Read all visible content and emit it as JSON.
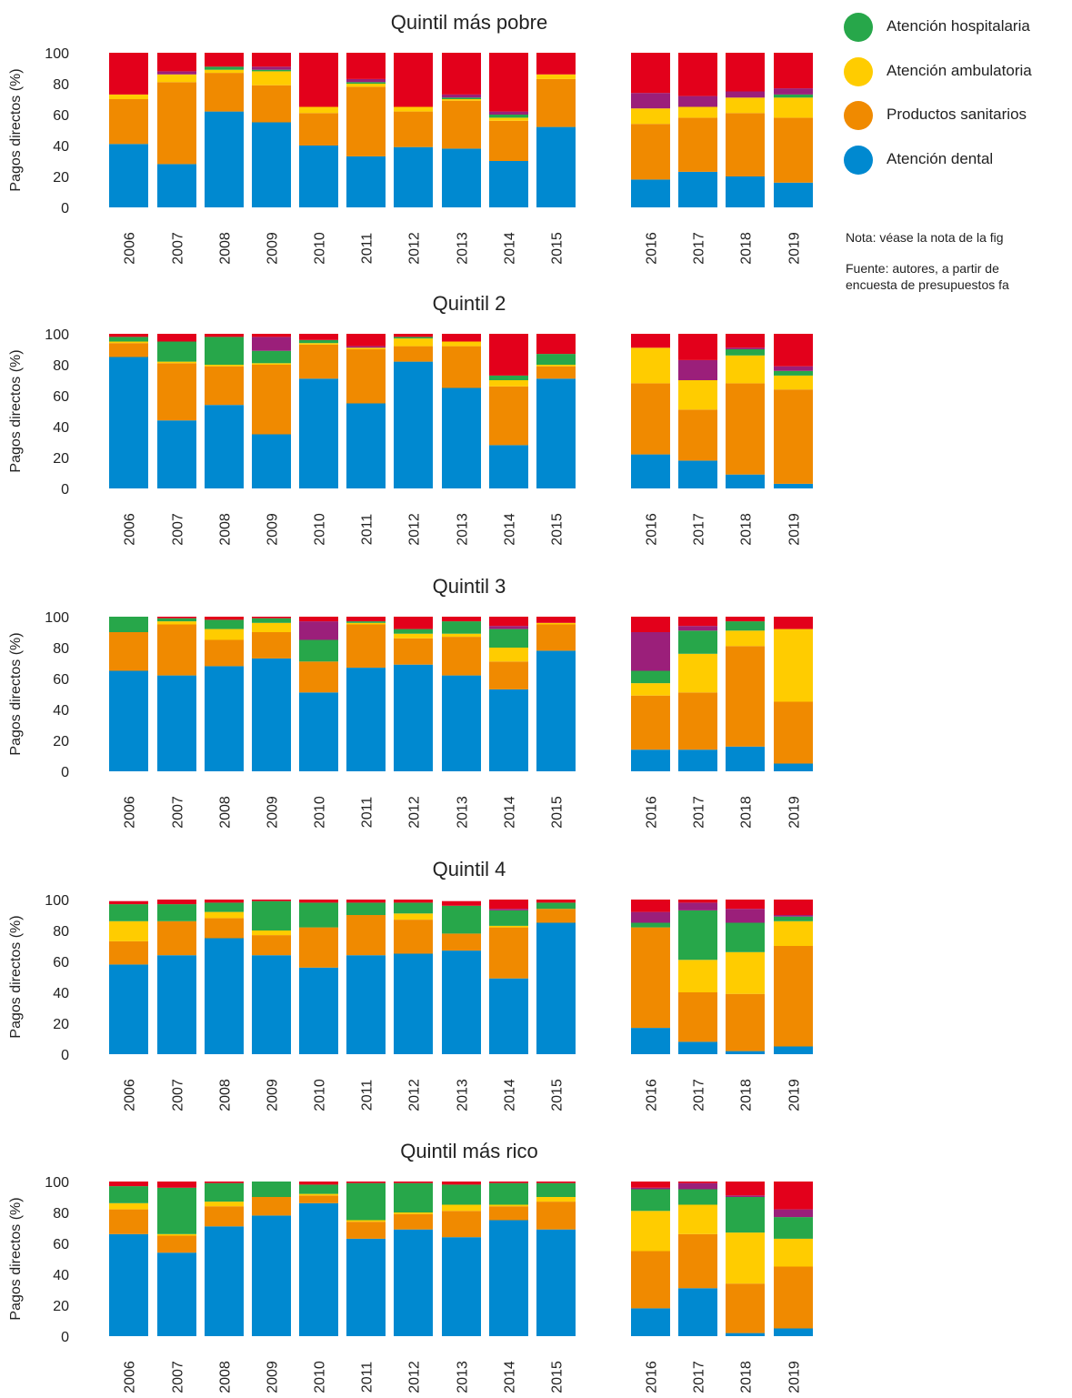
{
  "legend": [
    {
      "label": "Atención hospitalaria",
      "color": "#27a74a"
    },
    {
      "label": "Atención ambulatoria",
      "color": "#ffcc00"
    },
    {
      "label": "Productos sanitarios",
      "color": "#f08a00"
    },
    {
      "label": "Atención dental",
      "color": "#0089d0"
    }
  ],
  "notes": {
    "note": "Nota: véase la nota de la fig",
    "source_line1": "Fuente: autores, a partir de",
    "source_line2": "encuesta de presupuestos fa"
  },
  "chart_data": [
    {
      "type": "bar",
      "stacked": true,
      "title": "Quintil más pobre",
      "ylabel": "Pagos directos (%)",
      "ylim": [
        0,
        100
      ],
      "yticks": [
        0,
        20,
        40,
        60,
        80,
        100
      ],
      "categories": [
        "2006",
        "2007",
        "2008",
        "2009",
        "2010",
        "2011",
        "2012",
        "2013",
        "2014",
        "2015",
        "2016",
        "2017",
        "2018",
        "2019"
      ],
      "category_groups": [
        [
          "2006",
          "2007",
          "2008",
          "2009",
          "2010",
          "2011",
          "2012",
          "2013",
          "2014",
          "2015"
        ],
        [
          "2016",
          "2017",
          "2018",
          "2019"
        ]
      ],
      "series": [
        {
          "name": "Atención dental",
          "color": "#0089d0",
          "values": [
            41,
            28,
            62,
            55,
            40,
            33,
            39,
            38,
            30,
            52,
            18,
            23,
            20,
            16
          ]
        },
        {
          "name": "Productos sanitarios",
          "color": "#f08a00",
          "values": [
            29,
            53,
            25,
            24,
            21,
            45,
            23,
            31,
            26,
            31,
            36,
            35,
            41,
            42
          ]
        },
        {
          "name": "Atención ambulatoria",
          "color": "#ffcc00",
          "values": [
            3,
            5,
            2,
            9,
            4,
            2,
            3,
            1,
            2,
            3,
            10,
            7,
            10,
            13
          ]
        },
        {
          "name": "Atención hospitalaria",
          "color": "#27a74a",
          "values": [
            0,
            0,
            2,
            1,
            0,
            1,
            0,
            1,
            2,
            0,
            0,
            0,
            0,
            2
          ]
        },
        {
          "name": "",
          "color": "#9b1f7a",
          "values": [
            0,
            2,
            0,
            2,
            0,
            2,
            0,
            2,
            2,
            0,
            10,
            7,
            4,
            4
          ]
        },
        {
          "name": "",
          "color": "#e3001b",
          "values": [
            27,
            12,
            9,
            9,
            35,
            17,
            35,
            27,
            38,
            14,
            26,
            28,
            25,
            23
          ]
        }
      ]
    },
    {
      "type": "bar",
      "stacked": true,
      "title": "Quintil 2",
      "ylabel": "Pagos directos (%)",
      "ylim": [
        0,
        100
      ],
      "yticks": [
        0,
        20,
        40,
        60,
        80,
        100
      ],
      "categories": [
        "2006",
        "2007",
        "2008",
        "2009",
        "2010",
        "2011",
        "2012",
        "2013",
        "2014",
        "2015",
        "2016",
        "2017",
        "2018",
        "2019"
      ],
      "category_groups": [
        [
          "2006",
          "2007",
          "2008",
          "2009",
          "2010",
          "2011",
          "2012",
          "2013",
          "2014",
          "2015"
        ],
        [
          "2016",
          "2017",
          "2018",
          "2019"
        ]
      ],
      "series": [
        {
          "name": "Atención dental",
          "color": "#0089d0",
          "values": [
            85,
            44,
            54,
            35,
            71,
            55,
            82,
            65,
            28,
            71,
            22,
            18,
            9,
            3
          ]
        },
        {
          "name": "Productos sanitarios",
          "color": "#f08a00",
          "values": [
            9,
            37,
            25,
            45,
            22,
            35,
            10,
            27,
            38,
            8,
            46,
            33,
            59,
            61
          ]
        },
        {
          "name": "Atención ambulatoria",
          "color": "#ffcc00",
          "values": [
            1,
            1,
            1,
            1,
            1,
            1,
            5,
            3,
            4,
            1,
            23,
            19,
            18,
            9
          ]
        },
        {
          "name": "Atención hospitalaria",
          "color": "#27a74a",
          "values": [
            3,
            13,
            18,
            8,
            2,
            0,
            1,
            0,
            3,
            7,
            0,
            0,
            4,
            3
          ]
        },
        {
          "name": "",
          "color": "#9b1f7a",
          "values": [
            0,
            0,
            0,
            9,
            0,
            1,
            0,
            0,
            0,
            0,
            0,
            13,
            1,
            3
          ]
        },
        {
          "name": "",
          "color": "#e3001b",
          "values": [
            2,
            5,
            2,
            2,
            4,
            8,
            2,
            5,
            27,
            13,
            9,
            17,
            9,
            21
          ]
        }
      ]
    },
    {
      "type": "bar",
      "stacked": true,
      "title": "Quintil 3",
      "ylabel": "Pagos directos (%)",
      "ylim": [
        0,
        100
      ],
      "yticks": [
        0,
        20,
        40,
        60,
        80,
        100
      ],
      "categories": [
        "2006",
        "2007",
        "2008",
        "2009",
        "2010",
        "2011",
        "2012",
        "2013",
        "2014",
        "2015",
        "2016",
        "2017",
        "2018",
        "2019"
      ],
      "category_groups": [
        [
          "2006",
          "2007",
          "2008",
          "2009",
          "2010",
          "2011",
          "2012",
          "2013",
          "2014",
          "2015"
        ],
        [
          "2016",
          "2017",
          "2018",
          "2019"
        ]
      ],
      "series": [
        {
          "name": "Atención dental",
          "color": "#0089d0",
          "values": [
            65,
            62,
            68,
            73,
            51,
            67,
            69,
            62,
            53,
            78,
            14,
            14,
            16,
            5
          ]
        },
        {
          "name": "Productos sanitarios",
          "color": "#f08a00",
          "values": [
            25,
            33,
            17,
            17,
            20,
            28,
            17,
            25,
            18,
            17,
            35,
            37,
            65,
            40
          ]
        },
        {
          "name": "Atención ambulatoria",
          "color": "#ffcc00",
          "values": [
            0,
            2,
            7,
            6,
            0,
            1,
            3,
            2,
            9,
            1,
            8,
            25,
            10,
            47
          ]
        },
        {
          "name": "Atención hospitalaria",
          "color": "#27a74a",
          "values": [
            10,
            2,
            6,
            3,
            14,
            1,
            3,
            8,
            12,
            0,
            8,
            15,
            6,
            0
          ]
        },
        {
          "name": "",
          "color": "#9b1f7a",
          "values": [
            0,
            0,
            0,
            0,
            12,
            0,
            0,
            0,
            2,
            0,
            25,
            3,
            0,
            0
          ]
        },
        {
          "name": "",
          "color": "#e3001b",
          "values": [
            0,
            1,
            2,
            1,
            3,
            3,
            8,
            3,
            6,
            4,
            10,
            6,
            3,
            8
          ]
        }
      ]
    },
    {
      "type": "bar",
      "stacked": true,
      "title": "Quintil 4",
      "ylabel": "Pagos directos (%)",
      "ylim": [
        0,
        100
      ],
      "yticks": [
        0,
        20,
        40,
        60,
        80,
        100
      ],
      "categories": [
        "2006",
        "2007",
        "2008",
        "2009",
        "2010",
        "2011",
        "2012",
        "2013",
        "2014",
        "2015",
        "2016",
        "2017",
        "2018",
        "2019"
      ],
      "category_groups": [
        [
          "2006",
          "2007",
          "2008",
          "2009",
          "2010",
          "2011",
          "2012",
          "2013",
          "2014",
          "2015"
        ],
        [
          "2016",
          "2017",
          "2018",
          "2019"
        ]
      ],
      "series": [
        {
          "name": "Atención dental",
          "color": "#0089d0",
          "values": [
            58,
            64,
            75,
            64,
            56,
            64,
            65,
            67,
            49,
            85,
            17,
            8,
            2,
            5
          ]
        },
        {
          "name": "Productos sanitarios",
          "color": "#f08a00",
          "values": [
            15,
            22,
            13,
            13,
            26,
            26,
            22,
            11,
            33,
            9,
            65,
            32,
            37,
            65
          ]
        },
        {
          "name": "Atención ambulatoria",
          "color": "#ffcc00",
          "values": [
            13,
            0,
            4,
            3,
            0,
            0,
            4,
            0,
            1,
            0,
            0,
            21,
            27,
            16
          ]
        },
        {
          "name": "Atención hospitalaria",
          "color": "#27a74a",
          "values": [
            11,
            11,
            6,
            19,
            16,
            8,
            7,
            18,
            10,
            4,
            3,
            32,
            19,
            3
          ]
        },
        {
          "name": "",
          "color": "#9b1f7a",
          "values": [
            0,
            0,
            0,
            0,
            0,
            0,
            0,
            0,
            1,
            0,
            7,
            5,
            9,
            1
          ]
        },
        {
          "name": "",
          "color": "#e3001b",
          "values": [
            2,
            3,
            2,
            1,
            2,
            2,
            2,
            3,
            6,
            2,
            8,
            2,
            6,
            10
          ]
        }
      ]
    },
    {
      "type": "bar",
      "stacked": true,
      "title": "Quintil más rico",
      "ylabel": "Pagos directos (%)",
      "ylim": [
        0,
        100
      ],
      "yticks": [
        0,
        20,
        40,
        60,
        80,
        100
      ],
      "categories": [
        "2006",
        "2007",
        "2008",
        "2009",
        "2010",
        "2011",
        "2012",
        "2013",
        "2014",
        "2015",
        "2016",
        "2017",
        "2018",
        "2019"
      ],
      "category_groups": [
        [
          "2006",
          "2007",
          "2008",
          "2009",
          "2010",
          "2011",
          "2012",
          "2013",
          "2014",
          "2015"
        ],
        [
          "2016",
          "2017",
          "2018",
          "2019"
        ]
      ],
      "series": [
        {
          "name": "Atención dental",
          "color": "#0089d0",
          "values": [
            66,
            54,
            71,
            78,
            86,
            63,
            69,
            64,
            75,
            69,
            18,
            31,
            2,
            5
          ]
        },
        {
          "name": "Productos sanitarios",
          "color": "#f08a00",
          "values": [
            16,
            11,
            13,
            12,
            5,
            11,
            10,
            17,
            9,
            18,
            37,
            35,
            32,
            40
          ]
        },
        {
          "name": "Atención ambulatoria",
          "color": "#ffcc00",
          "values": [
            4,
            1,
            3,
            0,
            1,
            1,
            1,
            4,
            1,
            3,
            26,
            19,
            33,
            18
          ]
        },
        {
          "name": "Atención hospitalaria",
          "color": "#27a74a",
          "values": [
            11,
            30,
            12,
            10,
            6,
            24,
            19,
            13,
            14,
            9,
            14,
            10,
            23,
            14
          ]
        },
        {
          "name": "",
          "color": "#9b1f7a",
          "values": [
            0,
            0,
            0,
            0,
            0,
            0,
            0,
            0,
            0,
            0,
            1,
            4,
            1,
            5
          ]
        },
        {
          "name": "",
          "color": "#e3001b",
          "values": [
            3,
            4,
            1,
            0,
            2,
            1,
            1,
            2,
            1,
            1,
            4,
            1,
            9,
            18
          ]
        }
      ]
    }
  ]
}
